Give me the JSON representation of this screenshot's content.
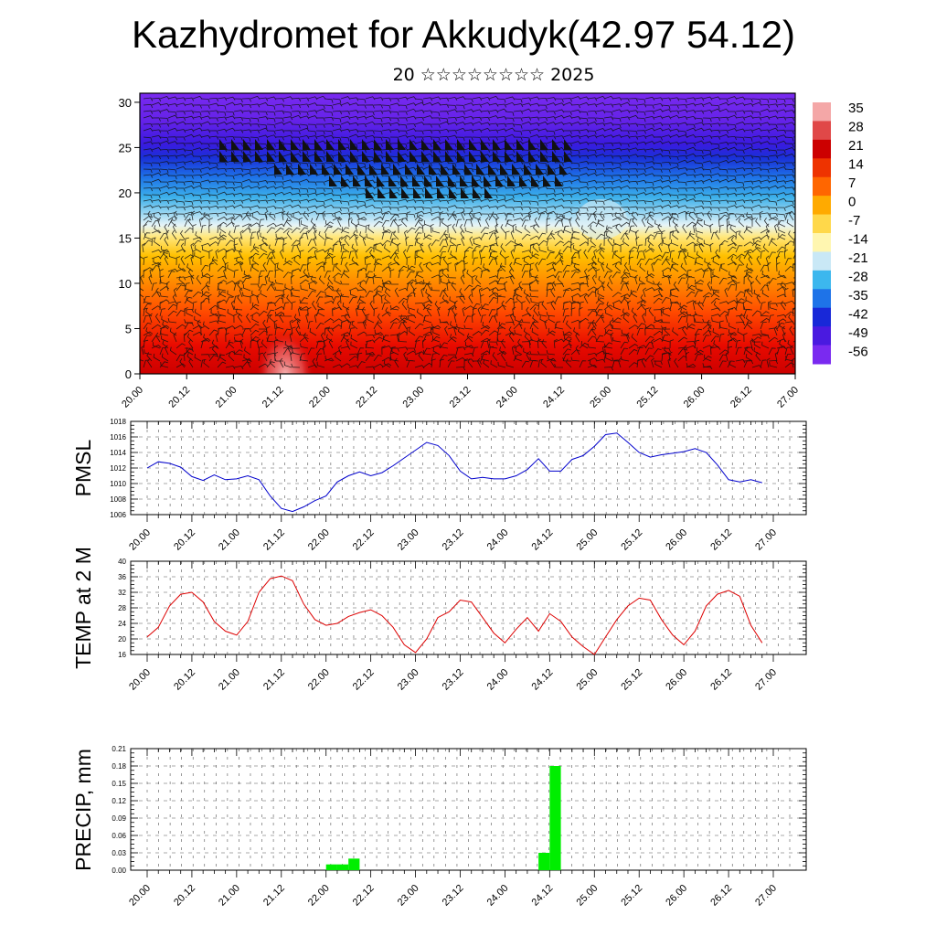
{
  "header": {
    "title": "Kazhydromet for Akkudyk(42.97 54.12)",
    "subtitle": "20 ☆☆☆☆☆☆☆☆ 2025"
  },
  "time_labels": [
    "20.00",
    "20.12",
    "21.00",
    "21.12",
    "22.00",
    "22.12",
    "23.00",
    "23.12",
    "24.00",
    "24.12",
    "25.00",
    "25.12",
    "26.00",
    "26.12",
    "27.00"
  ],
  "colors": {
    "pmsl_line": "#0000cc",
    "temp_line": "#dd0000",
    "precip_bar": "#00ee00",
    "grid": "#555555"
  },
  "chart_data": [
    {
      "type": "heatmap",
      "name": "cross-section",
      "yticks": [
        0,
        5,
        10,
        15,
        20,
        25,
        30
      ],
      "ylim": [
        0,
        31
      ],
      "colorbar": {
        "labels": [
          35,
          28,
          21,
          14,
          7,
          0,
          -7,
          -14,
          -21,
          -28,
          -35,
          -42,
          -49,
          -56
        ],
        "colors": [
          "#f4a7a7",
          "#e04848",
          "#cc0000",
          "#ee3300",
          "#ff6600",
          "#ffaa00",
          "#ffd84a",
          "#fff6b0",
          "#c9e8f6",
          "#3cb7ee",
          "#1e73e8",
          "#1828d8",
          "#4a1ae0",
          "#7a2af0"
        ]
      }
    },
    {
      "type": "line",
      "name": "pmsl",
      "ylabel": "PMSL",
      "ylim": [
        1006,
        1018
      ],
      "yticks": [
        1006,
        1008,
        1010,
        1012,
        1014,
        1016,
        1018
      ],
      "x": [
        0,
        1,
        2,
        3,
        4,
        5,
        6,
        7,
        8,
        9,
        10,
        11,
        12,
        13,
        14,
        15,
        16,
        17,
        18,
        19,
        20,
        21,
        22,
        23,
        24,
        25,
        26,
        27,
        28,
        29,
        30,
        31,
        32,
        33,
        34,
        35,
        36,
        37,
        38,
        39,
        40,
        41,
        42,
        43,
        44,
        45,
        46,
        47,
        48,
        49,
        50,
        51,
        52,
        53,
        54,
        55
      ],
      "values": [
        1012.0,
        1012.8,
        1012.6,
        1012.1,
        1010.9,
        1010.4,
        1011.1,
        1010.5,
        1010.6,
        1011.0,
        1010.5,
        1008.4,
        1006.8,
        1006.4,
        1007.0,
        1007.8,
        1008.4,
        1010.2,
        1011.0,
        1011.5,
        1011.0,
        1011.4,
        1012.3,
        1013.3,
        1014.3,
        1015.3,
        1014.9,
        1013.6,
        1011.6,
        1010.6,
        1010.8,
        1010.6,
        1010.6,
        1011.0,
        1011.8,
        1013.2,
        1011.6,
        1011.6,
        1013.1,
        1013.6,
        1014.8,
        1016.3,
        1016.5,
        1015.3,
        1014.0,
        1013.4,
        1013.7,
        1013.9,
        1014.1,
        1014.5,
        1014.0,
        1012.4,
        1010.5,
        1010.2,
        1010.5,
        1010.1
      ]
    },
    {
      "type": "line",
      "name": "temp",
      "ylabel": "TEMP at 2 M",
      "ylim": [
        16,
        40
      ],
      "yticks": [
        16,
        20,
        24,
        28,
        32,
        36,
        40
      ],
      "x": [
        0,
        1,
        2,
        3,
        4,
        5,
        6,
        7,
        8,
        9,
        10,
        11,
        12,
        13,
        14,
        15,
        16,
        17,
        18,
        19,
        20,
        21,
        22,
        23,
        24,
        25,
        26,
        27,
        28,
        29,
        30,
        31,
        32,
        33,
        34,
        35,
        36,
        37,
        38,
        39,
        40,
        41,
        42,
        43,
        44,
        45,
        46,
        47,
        48,
        49,
        50,
        51,
        52,
        53,
        54,
        55
      ],
      "values": [
        20.5,
        23.0,
        28.5,
        31.5,
        32.0,
        29.5,
        24.5,
        22.0,
        21.0,
        24.5,
        32.0,
        35.5,
        36.2,
        35.0,
        29.0,
        25.0,
        23.5,
        24.0,
        25.8,
        26.8,
        27.5,
        26.0,
        23.0,
        18.5,
        16.5,
        20.0,
        25.5,
        27.0,
        30.0,
        29.5,
        25.5,
        21.5,
        19.0,
        22.5,
        25.5,
        22.0,
        26.5,
        24.5,
        20.5,
        18.0,
        16.0,
        20.5,
        25.0,
        28.5,
        30.5,
        30.0,
        25.0,
        21.0,
        18.5,
        22.0,
        28.5,
        31.5,
        32.5,
        31.0,
        23.5,
        19.0
      ]
    },
    {
      "type": "bar",
      "name": "precip",
      "ylabel": "PRECIP, mm",
      "ylim": [
        0,
        0.21
      ],
      "yticks": [
        "0.00",
        "0.03",
        "0.06",
        "0.09",
        "0.12",
        "0.15",
        "0.18",
        "0.21"
      ],
      "bars": [
        {
          "x": 16,
          "value": 0.01
        },
        {
          "x": 17,
          "value": 0.01
        },
        {
          "x": 18,
          "value": 0.02
        },
        {
          "x": 35,
          "value": 0.03
        },
        {
          "x": 36,
          "value": 0.18
        }
      ]
    }
  ]
}
